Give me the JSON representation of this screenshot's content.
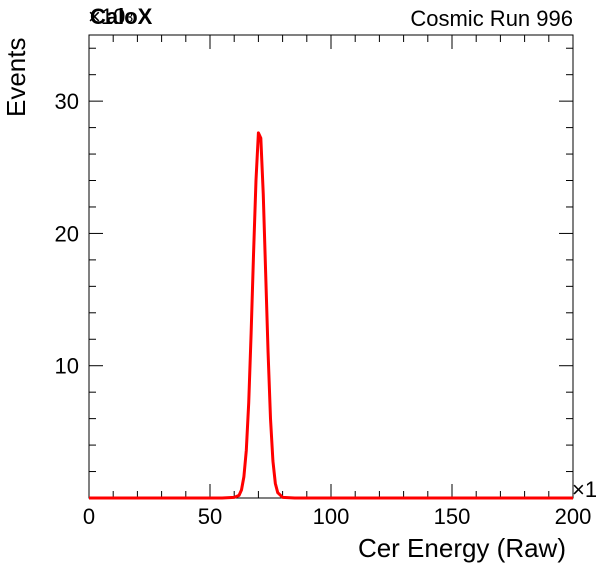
{
  "header": {
    "experiment_tag": "CaloX",
    "run_label": "Cosmic Run 996"
  },
  "axes": {
    "y_exponent_label": "×10",
    "y_exponent_power": "3",
    "x_exponent_label": "×1"
  },
  "chart_data": {
    "type": "line",
    "title": "",
    "xlabel": "Cer Energy (Raw)",
    "ylabel": "Events",
    "xlim": [
      0,
      200
    ],
    "ylim": [
      0,
      35
    ],
    "x_ticks": [
      0,
      50,
      100,
      150,
      200
    ],
    "x_tick_labels": [
      "0",
      "50",
      "100",
      "150",
      "200"
    ],
    "y_ticks": [
      10,
      20,
      30
    ],
    "y_tick_labels": [
      "10",
      "20",
      "30"
    ],
    "grid": false,
    "series": [
      {
        "color": "#ff0000",
        "x": [
          0,
          55,
          60,
          62,
          63,
          64,
          65,
          66,
          67,
          68,
          69,
          70,
          71,
          72,
          73,
          74,
          75,
          76,
          77,
          78,
          80,
          85,
          200
        ],
        "y": [
          0,
          0,
          0.05,
          0.2,
          0.6,
          1.6,
          3.6,
          7.2,
          12.5,
          18.5,
          24.0,
          27.6,
          27.2,
          23.0,
          17.0,
          11.0,
          6.0,
          2.8,
          1.1,
          0.4,
          0.05,
          0,
          0
        ]
      }
    ]
  }
}
